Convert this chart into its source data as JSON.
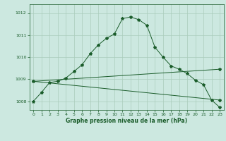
{
  "title": "Graphe pression niveau de la mer (hPa)",
  "background_color": "#cce8e0",
  "grid_color": "#aaccbb",
  "line_color": "#1a5c2a",
  "xlim": [
    -0.5,
    23.5
  ],
  "ylim": [
    1007.6,
    1012.4
  ],
  "xticks": [
    0,
    1,
    2,
    3,
    4,
    5,
    6,
    7,
    8,
    9,
    10,
    11,
    12,
    13,
    14,
    15,
    16,
    17,
    18,
    19,
    20,
    21,
    22,
    23
  ],
  "yticks": [
    1008,
    1009,
    1010,
    1011,
    1012
  ],
  "series1": {
    "x": [
      0,
      1,
      2,
      3,
      4,
      5,
      6,
      7,
      8,
      9,
      10,
      11,
      12,
      13,
      14,
      15,
      16,
      17,
      18,
      19,
      20,
      21,
      22,
      23
    ],
    "y": [
      1008.0,
      1008.4,
      1008.85,
      1008.9,
      1009.05,
      1009.35,
      1009.65,
      1010.15,
      1010.55,
      1010.85,
      1011.05,
      1011.75,
      1011.82,
      1011.7,
      1011.45,
      1010.45,
      1010.0,
      1009.6,
      1009.45,
      1009.25,
      1008.95,
      1008.75,
      1008.05,
      1007.72
    ]
  },
  "series2": {
    "x": [
      0,
      23
    ],
    "y": [
      1008.9,
      1009.45
    ]
  },
  "series3": {
    "x": [
      0,
      23
    ],
    "y": [
      1008.9,
      1008.05
    ]
  },
  "marker_series2": {
    "x": [
      0,
      23
    ],
    "y": [
      1008.9,
      1009.45
    ]
  },
  "marker_series3": {
    "x": [
      0,
      23
    ],
    "y": [
      1008.9,
      1008.05
    ]
  }
}
